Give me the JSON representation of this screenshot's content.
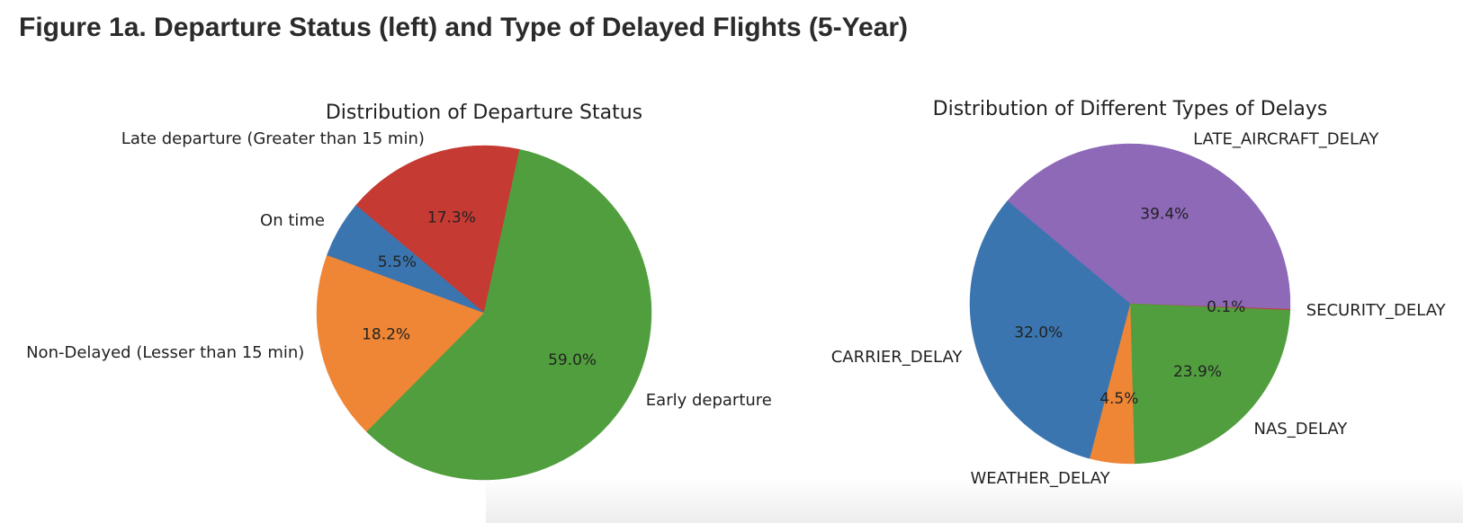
{
  "figure_heading": "Figure 1a. Departure Status (left) and Type of Delayed Flights (5-Year)",
  "chart_data": [
    {
      "type": "pie",
      "title": "Distribution of Departure Status",
      "startangle_deg": 140,
      "slices": [
        {
          "label": "On time",
          "value": 5.5,
          "pct_label": "5.5%",
          "color": "#3b75af"
        },
        {
          "label": "Non-Delayed (Lesser than 15 min)",
          "value": 18.2,
          "pct_label": "18.2%",
          "color": "#ef8636"
        },
        {
          "label": "Early departure",
          "value": 59.0,
          "pct_label": "59.0%",
          "color": "#519e3e"
        },
        {
          "label": "Late departure (Greater than 15 min)",
          "value": 17.3,
          "pct_label": "17.3%",
          "color": "#c53a32"
        }
      ]
    },
    {
      "type": "pie",
      "title": "Distribution of Different Types of Delays",
      "startangle_deg": 140,
      "slices": [
        {
          "label": "CARRIER_DELAY",
          "value": 32.0,
          "pct_label": "32.0%",
          "color": "#3b75af"
        },
        {
          "label": "WEATHER_DELAY",
          "value": 4.5,
          "pct_label": "4.5%",
          "color": "#ef8636"
        },
        {
          "label": "NAS_DELAY",
          "value": 23.9,
          "pct_label": "23.9%",
          "color": "#519e3e"
        },
        {
          "label": "SECURITY_DELAY",
          "value": 0.1,
          "pct_label": "0.1%",
          "color": "#c53a32"
        },
        {
          "label": "LATE_AIRCRAFT_DELAY",
          "value": 39.4,
          "pct_label": "39.4%",
          "color": "#8d69b8"
        }
      ]
    }
  ]
}
